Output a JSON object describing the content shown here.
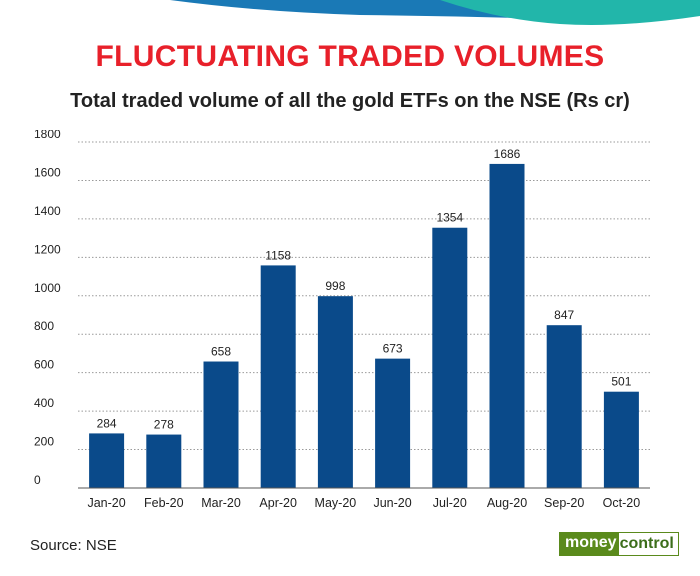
{
  "header": {
    "title": "FLUCTUATING TRADED VOLUMES",
    "subtitle": "Total traded volume of all the gold ETFs on the NSE (Rs cr)"
  },
  "footer": {
    "source": "Source: NSE",
    "logo": {
      "part1": "money",
      "part2": "control"
    }
  },
  "colors": {
    "title": "#e8202a",
    "bar": "#0a4a8a",
    "wave_blue": "#1a79b6",
    "wave_teal": "#22b6aa",
    "logo_green": "#5a8a1c"
  },
  "chart_data": {
    "type": "bar",
    "categories": [
      "Jan-20",
      "Feb-20",
      "Mar-20",
      "Apr-20",
      "May-20",
      "Jun-20",
      "Jul-20",
      "Aug-20",
      "Sep-20",
      "Oct-20"
    ],
    "values": [
      284,
      278,
      658,
      1158,
      998,
      673,
      1354,
      1686,
      847,
      501
    ],
    "data_labels": [
      "284",
      "278",
      "658",
      "1158",
      "998",
      "673",
      "1354",
      "1686",
      "847",
      "501"
    ],
    "ylim": [
      0,
      1800
    ],
    "yticks": [
      "0",
      "200",
      "400",
      "600",
      "800",
      "1000",
      "1200",
      "1400",
      "1600",
      "1800"
    ],
    "grid": "horizontal dashed",
    "xlabel": "",
    "ylabel": ""
  }
}
